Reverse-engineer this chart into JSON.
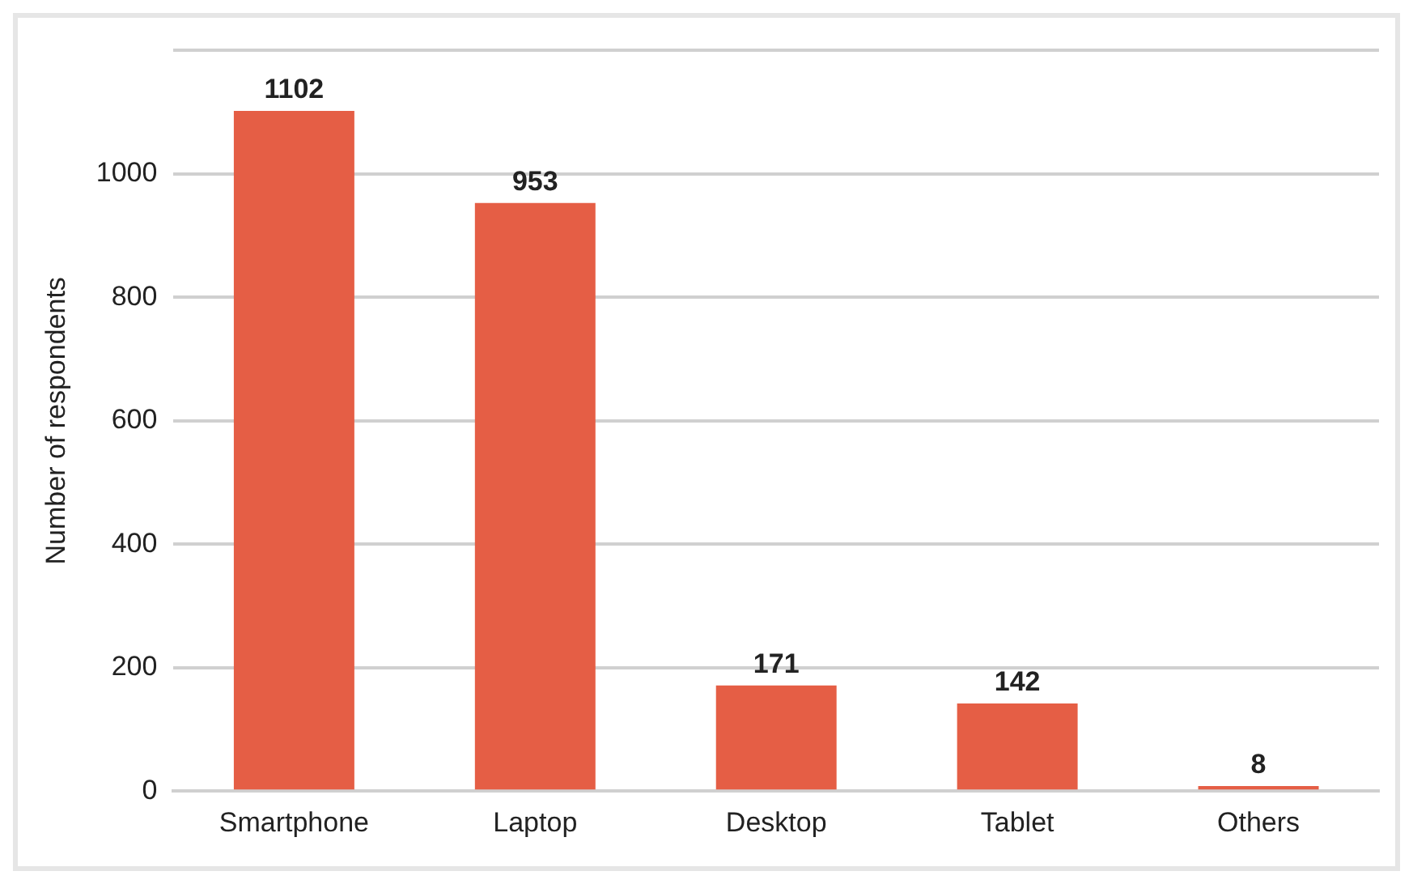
{
  "chart_data": {
    "type": "bar",
    "ylabel": "Number of respondents",
    "categories": [
      "Smartphone",
      "Laptop",
      "Desktop",
      "Tablet",
      "Others"
    ],
    "values": [
      1102,
      953,
      171,
      142,
      8
    ],
    "color": "#e55e45",
    "ylim": [
      0,
      1200
    ],
    "yticks": [
      0,
      200,
      400,
      600,
      800,
      1000,
      {
        "value": 1200,
        "label": null
      }
    ],
    "grid": "y",
    "data_labels": true
  }
}
